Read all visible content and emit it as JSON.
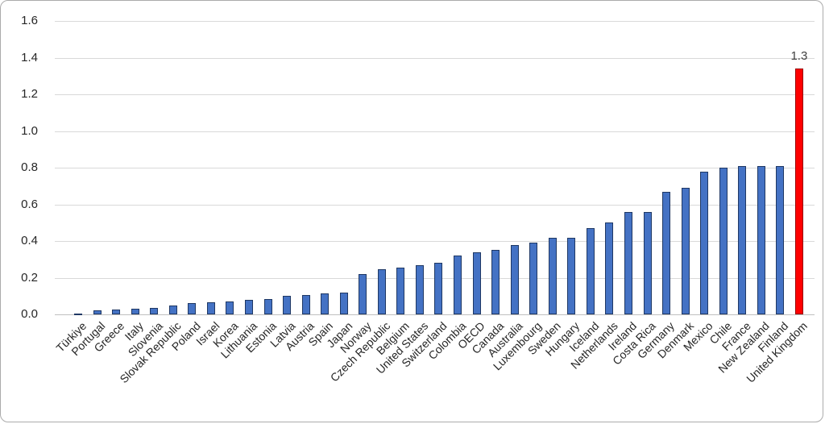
{
  "chart_data": {
    "type": "bar",
    "title": "",
    "xlabel": "",
    "ylabel": "",
    "categories": [
      "Türkiye",
      "Portugal",
      "Greece",
      "Italy",
      "Slovenia",
      "Slovak Republic",
      "Poland",
      "Israel",
      "Korea",
      "Lithuania",
      "Estonia",
      "Latvia",
      "Austria",
      "Spain",
      "Japan",
      "Norway",
      "Czech Republic",
      "Belgium",
      "United States",
      "Switzerland",
      "Colombia",
      "OECD",
      "Canada",
      "Australia",
      "Luxembourg",
      "Sweden",
      "Hungary",
      "Iceland",
      "Netherlands",
      "Ireland",
      "Costa Rica",
      "Germany",
      "Denmark",
      "Mexico",
      "Chile",
      "France",
      "New Zealand",
      "Finland",
      "United Kingdom"
    ],
    "values": [
      0.005,
      0.02,
      0.025,
      0.03,
      0.035,
      0.05,
      0.06,
      0.065,
      0.07,
      0.08,
      0.085,
      0.1,
      0.105,
      0.115,
      0.12,
      0.22,
      0.245,
      0.255,
      0.27,
      0.28,
      0.32,
      0.34,
      0.35,
      0.38,
      0.39,
      0.42,
      0.42,
      0.47,
      0.5,
      0.56,
      0.56,
      0.67,
      0.69,
      0.78,
      0.8,
      0.81,
      0.81,
      0.81,
      1.34
    ],
    "highlight_category": "United Kingdom",
    "data_label": {
      "category": "United Kingdom",
      "text": "1.3"
    },
    "yticks": [
      "0.0",
      "0.2",
      "0.4",
      "0.6",
      "0.8",
      "1.0",
      "1.2",
      "1.4",
      "1.6"
    ],
    "ylim": [
      0,
      1.6
    ],
    "ytick_step": 0.2,
    "grid": true,
    "legend": "none",
    "colors": {
      "bar_fill": "#4472c4",
      "bar_border": "#1f3864",
      "highlight_fill": "#ff0000",
      "highlight_border": "#990000",
      "gridline": "#d9d9d9",
      "text": "#262626"
    }
  }
}
